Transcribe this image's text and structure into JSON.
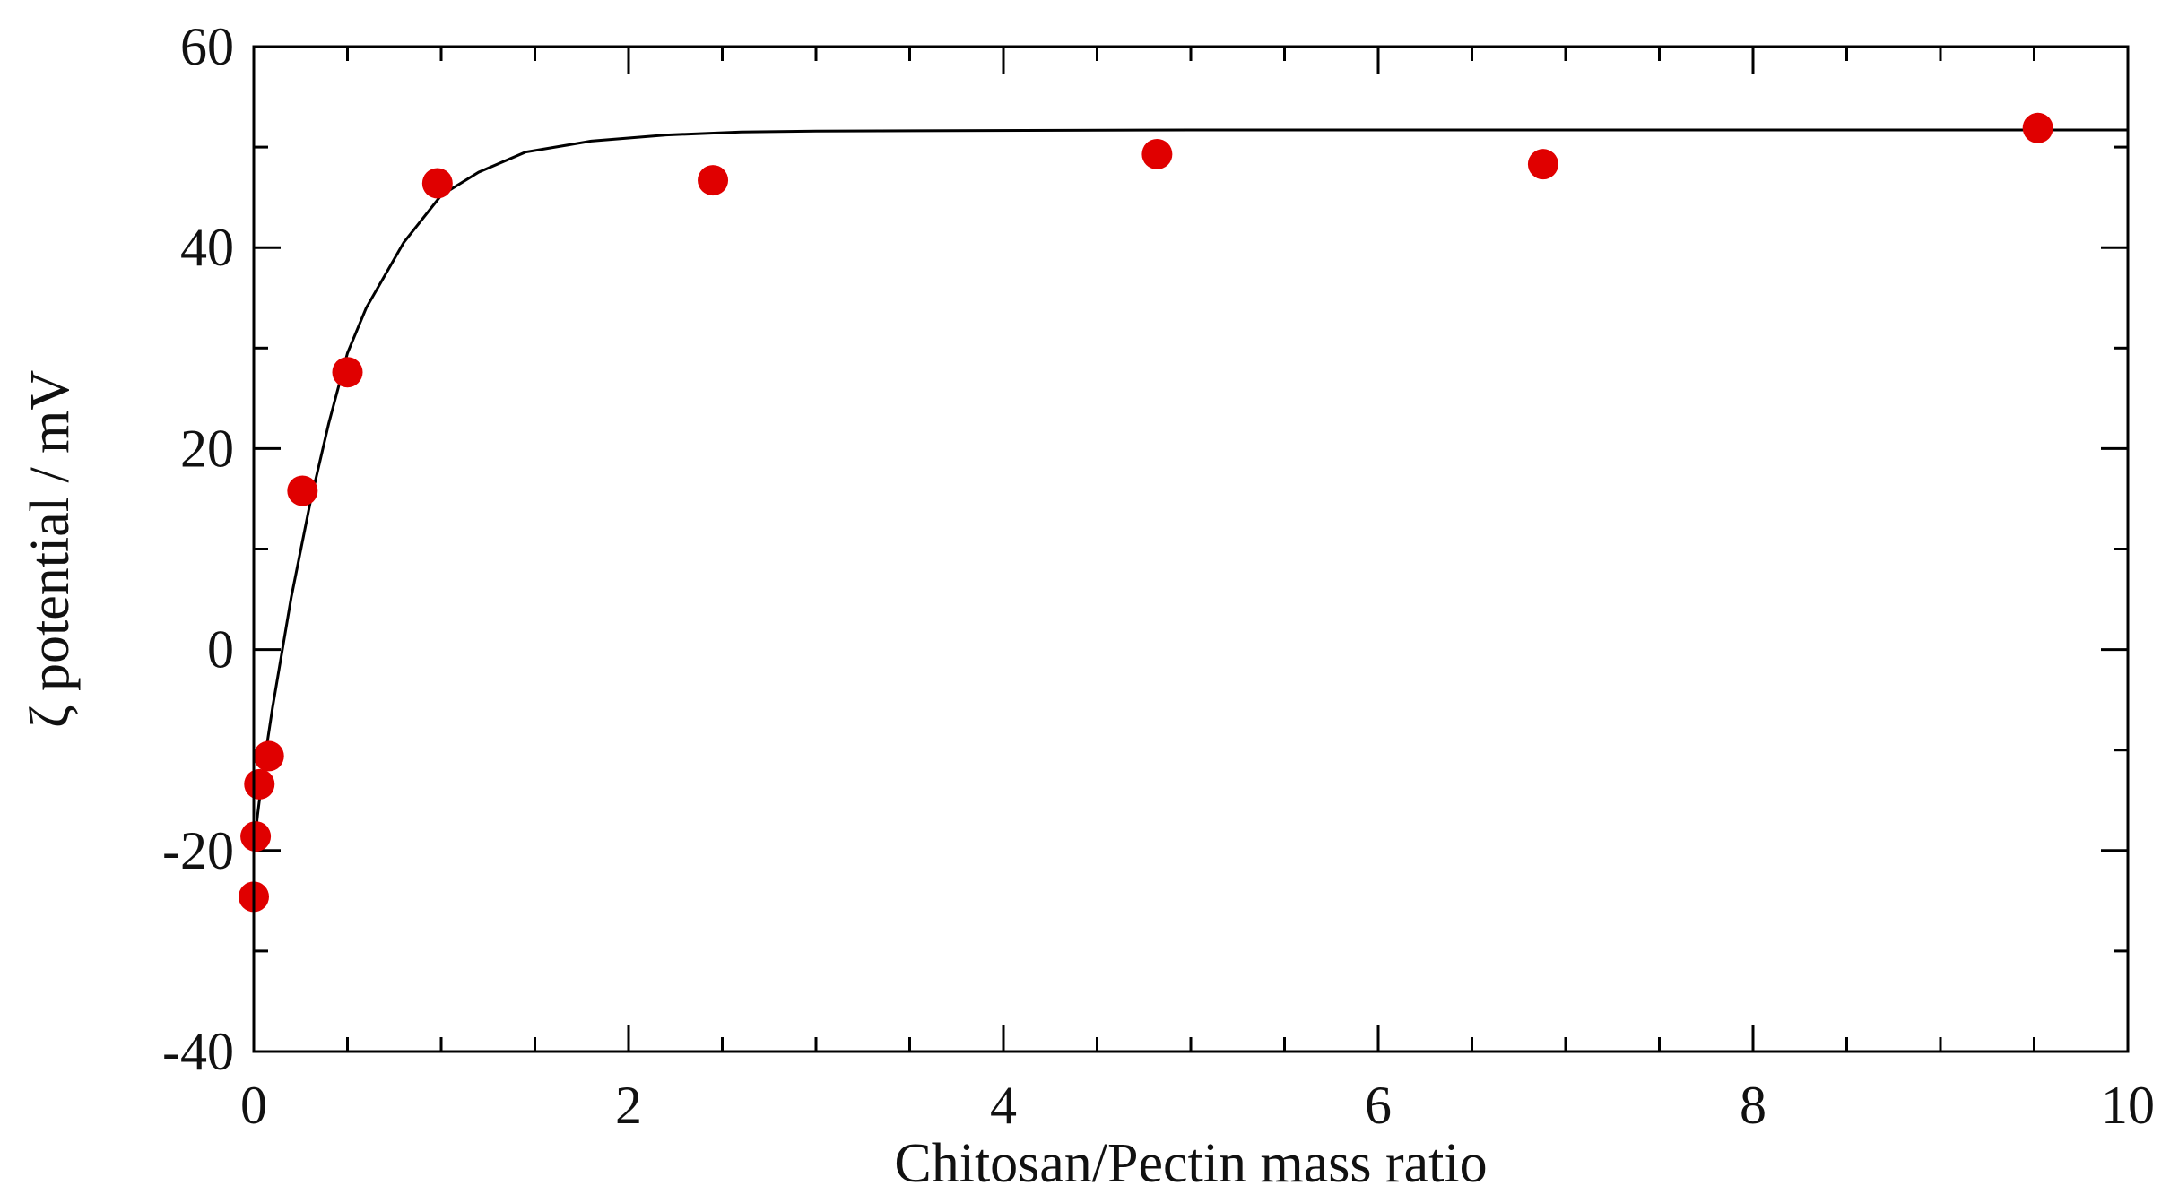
{
  "chart_data": {
    "type": "scatter",
    "title": "",
    "xlabel": "Chitosan/Pectin mass ratio",
    "ylabel": "ζ potential / mV",
    "xlim": [
      0,
      10
    ],
    "ylim": [
      -40,
      60
    ],
    "xticks": [
      0,
      2,
      4,
      6,
      8,
      10
    ],
    "xtick_labels": [
      "0",
      "2",
      "4",
      "6",
      "8",
      "10"
    ],
    "yticks": [
      -40,
      -20,
      0,
      20,
      40,
      60
    ],
    "ytick_labels": [
      "-40",
      "-20",
      "0",
      "20",
      "40",
      "60"
    ],
    "x_minor_step": 0.5,
    "y_minor_step": 10,
    "grid": false,
    "legend": "none",
    "marker_color": "#e00000",
    "line_color": "#000000",
    "series": [
      {
        "kind": "points",
        "x": [
          0.0,
          0.01,
          0.03,
          0.08,
          0.26,
          0.5,
          0.98,
          2.45,
          4.82,
          6.88,
          9.52
        ],
        "y": [
          -24.6,
          -18.6,
          -13.4,
          -10.6,
          15.8,
          27.6,
          46.4,
          46.7,
          49.3,
          48.3,
          51.9
        ]
      },
      {
        "kind": "fit-curve",
        "x": [
          0.0,
          0.02,
          0.05,
          0.1,
          0.2,
          0.3,
          0.4,
          0.5,
          0.6,
          0.8,
          1.0,
          1.2,
          1.45,
          1.8,
          2.2,
          2.6,
          3.0,
          5.0,
          7.0,
          10.0
        ],
        "y": [
          -20.0,
          -16.5,
          -12.0,
          -5.8,
          5.2,
          14.5,
          22.5,
          29.5,
          34.0,
          40.5,
          45.2,
          47.5,
          49.5,
          50.6,
          51.2,
          51.5,
          51.6,
          51.7,
          51.7,
          51.7
        ]
      }
    ]
  }
}
